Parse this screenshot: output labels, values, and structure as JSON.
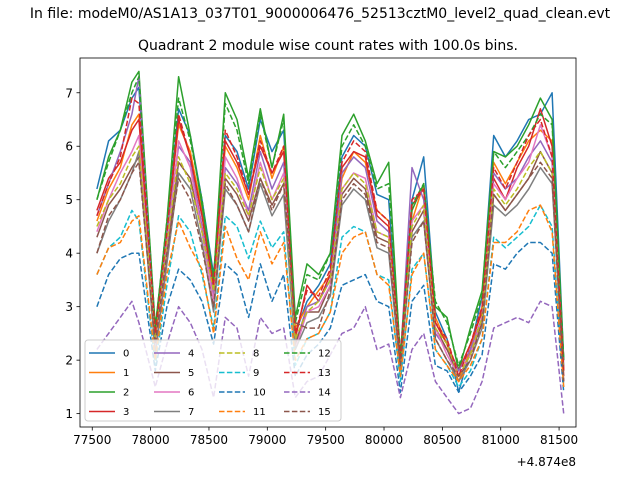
{
  "figure": {
    "suptitle": "In file: modeM0/AS1A13_037T01_9000006476_52513cztM0_level2_quad_clean.evt"
  },
  "chart_data": {
    "type": "line",
    "title": "Quadrant 2 module wise count rates with 100.0s bins.",
    "xlabel": "",
    "ylabel": "",
    "x_offset_label": "+4.874e8",
    "xlim": [
      77395,
      81645
    ],
    "ylim": [
      0.75,
      7.65
    ],
    "xticks": [
      77500,
      78000,
      78500,
      79000,
      79500,
      80000,
      80500,
      81000,
      81500
    ],
    "xtick_labels": [
      "77500",
      "78000",
      "78500",
      "79000",
      "79500",
      "80000",
      "80500",
      "81000",
      "81500"
    ],
    "yticks": [
      1,
      2,
      3,
      4,
      5,
      6,
      7
    ],
    "ytick_labels": [
      "1",
      "2",
      "3",
      "4",
      "5",
      "6",
      "7"
    ],
    "grid": false,
    "legend_position": "lower-left",
    "x": [
      77540,
      77640,
      77740,
      77840,
      77900,
      78040,
      78140,
      78240,
      78340,
      78440,
      78540,
      78640,
      78740,
      78840,
      78940,
      79040,
      79140,
      79240,
      79340,
      79440,
      79540,
      79640,
      79740,
      79840,
      79940,
      80040,
      80140,
      80240,
      80340,
      80440,
      80540,
      80640,
      80740,
      80840,
      80940,
      81040,
      81140,
      81240,
      81340,
      81440,
      81540
    ],
    "series": [
      {
        "name": "0",
        "color": "#1f77b4",
        "style": "solid",
        "values": [
          5.2,
          6.1,
          6.3,
          6.9,
          7.1,
          2.5,
          4.5,
          6.7,
          6.2,
          5.0,
          3.6,
          6.2,
          5.9,
          5.2,
          6.5,
          5.9,
          6.3,
          2.5,
          3.1,
          3.4,
          3.8,
          5.8,
          6.2,
          6.0,
          5.1,
          5.0,
          1.9,
          5.0,
          5.8,
          2.9,
          2.4,
          1.4,
          2.2,
          3.2,
          6.2,
          5.8,
          6.1,
          6.5,
          6.6,
          7.0,
          2.0
        ]
      },
      {
        "name": "1",
        "color": "#ff7f0e",
        "style": "solid",
        "values": [
          4.6,
          5.2,
          5.6,
          6.4,
          6.6,
          2.6,
          4.5,
          6.4,
          5.9,
          4.8,
          3.4,
          6.0,
          5.6,
          5.0,
          6.2,
          5.4,
          6.0,
          2.6,
          3.0,
          3.3,
          3.6,
          5.4,
          5.9,
          5.7,
          4.8,
          4.6,
          2.0,
          4.6,
          5.3,
          2.8,
          2.3,
          1.6,
          2.2,
          3.0,
          5.7,
          5.3,
          5.7,
          6.1,
          6.3,
          6.1,
          1.8
        ]
      },
      {
        "name": "2",
        "color": "#2ca02c",
        "style": "solid",
        "values": [
          5.0,
          5.8,
          6.3,
          7.2,
          7.4,
          2.6,
          4.6,
          7.3,
          6.2,
          4.9,
          3.5,
          7.0,
          6.5,
          5.4,
          6.7,
          5.6,
          6.6,
          2.8,
          3.8,
          3.6,
          4.0,
          6.2,
          6.6,
          6.1,
          5.3,
          5.7,
          2.0,
          4.8,
          5.3,
          3.0,
          2.8,
          1.8,
          2.6,
          3.3,
          5.9,
          5.8,
          6.0,
          6.4,
          6.9,
          6.5,
          2.0
        ]
      },
      {
        "name": "3",
        "color": "#d62728",
        "style": "solid",
        "values": [
          4.8,
          5.4,
          5.7,
          6.3,
          6.5,
          2.4,
          4.3,
          6.5,
          5.8,
          4.7,
          3.3,
          6.1,
          5.7,
          5.1,
          6.0,
          5.5,
          5.9,
          2.4,
          3.4,
          3.1,
          3.6,
          5.6,
          5.9,
          5.8,
          4.7,
          4.5,
          2.1,
          4.9,
          5.2,
          2.7,
          2.3,
          1.8,
          2.3,
          2.9,
          5.4,
          5.0,
          5.6,
          6.0,
          6.7,
          6.0,
          1.7
        ]
      },
      {
        "name": "4",
        "color": "#9467bd",
        "style": "solid",
        "values": [
          4.7,
          5.3,
          5.9,
          6.6,
          7.3,
          2.3,
          4.4,
          6.0,
          5.7,
          4.5,
          3.2,
          5.6,
          5.3,
          4.8,
          5.9,
          5.2,
          5.7,
          2.3,
          3.0,
          3.1,
          3.5,
          5.5,
          5.8,
          5.6,
          4.6,
          4.4,
          2.0,
          5.6,
          5.0,
          2.5,
          2.2,
          1.8,
          2.2,
          2.8,
          5.5,
          5.2,
          5.4,
          5.8,
          6.1,
          5.7,
          1.9
        ]
      },
      {
        "name": "5",
        "color": "#8c564b",
        "style": "solid",
        "values": [
          4.3,
          4.9,
          5.2,
          5.6,
          5.8,
          2.3,
          4.0,
          5.7,
          5.4,
          4.4,
          3.1,
          5.4,
          5.1,
          4.6,
          5.4,
          4.9,
          5.3,
          2.3,
          2.9,
          2.9,
          3.4,
          5.1,
          5.4,
          5.2,
          4.3,
          4.2,
          1.9,
          4.4,
          4.8,
          2.6,
          2.2,
          1.7,
          2.1,
          2.7,
          5.1,
          4.8,
          5.1,
          5.4,
          5.9,
          5.5,
          1.8
        ]
      },
      {
        "name": "6",
        "color": "#e377c2",
        "style": "solid",
        "values": [
          4.4,
          5.0,
          5.5,
          5.9,
          6.2,
          2.2,
          4.1,
          6.1,
          5.6,
          4.4,
          3.1,
          5.8,
          5.4,
          4.7,
          5.7,
          5.0,
          5.5,
          2.2,
          2.9,
          3.0,
          3.4,
          5.2,
          5.5,
          5.4,
          4.4,
          4.3,
          1.9,
          4.6,
          4.9,
          2.6,
          2.1,
          1.7,
          2.1,
          2.8,
          5.3,
          5.0,
          5.4,
          5.7,
          6.4,
          5.8,
          1.8
        ]
      },
      {
        "name": "7",
        "color": "#7f7f7f",
        "style": "solid",
        "values": [
          4.0,
          4.6,
          5.0,
          5.5,
          5.9,
          2.1,
          3.8,
          5.5,
          5.2,
          4.2,
          2.9,
          5.2,
          4.9,
          4.4,
          5.3,
          4.7,
          5.1,
          2.2,
          2.7,
          2.8,
          3.2,
          4.9,
          5.2,
          5.0,
          4.1,
          4.0,
          1.8,
          4.3,
          4.6,
          2.4,
          2.0,
          1.6,
          2.0,
          2.6,
          4.9,
          4.7,
          4.9,
          5.2,
          5.6,
          5.3,
          1.6
        ]
      },
      {
        "name": "8",
        "color": "#bcbd22",
        "style": "dashed",
        "values": [
          4.5,
          5.0,
          5.3,
          5.8,
          6.0,
          2.4,
          4.2,
          5.8,
          5.3,
          4.4,
          3.3,
          5.5,
          5.2,
          4.7,
          5.6,
          5.0,
          5.4,
          2.4,
          2.9,
          3.1,
          3.5,
          5.2,
          5.5,
          5.3,
          4.4,
          4.3,
          2.0,
          4.5,
          4.9,
          2.6,
          2.3,
          1.7,
          2.1,
          2.8,
          5.2,
          4.9,
          5.2,
          5.6,
          5.9,
          5.5,
          1.8
        ]
      },
      {
        "name": "9",
        "color": "#17becf",
        "style": "dashed",
        "values": [
          3.6,
          4.1,
          4.3,
          4.8,
          4.6,
          1.9,
          3.4,
          4.7,
          4.4,
          3.6,
          2.6,
          4.7,
          4.5,
          3.9,
          4.6,
          4.1,
          4.4,
          1.9,
          2.4,
          2.5,
          2.9,
          4.3,
          4.5,
          4.4,
          3.6,
          3.5,
          1.6,
          3.7,
          4.0,
          2.2,
          1.9,
          1.5,
          1.8,
          2.4,
          4.3,
          4.1,
          4.3,
          4.5,
          4.9,
          4.5,
          1.5
        ]
      },
      {
        "name": "10",
        "color": "#1f77b4",
        "style": "dashed",
        "values": [
          3.0,
          3.6,
          3.9,
          4.0,
          4.0,
          1.8,
          3.0,
          3.7,
          3.5,
          3.1,
          2.3,
          3.8,
          3.6,
          2.8,
          3.8,
          3.1,
          3.6,
          1.7,
          2.1,
          2.3,
          2.6,
          3.4,
          3.5,
          3.6,
          3.1,
          3.0,
          1.4,
          3.1,
          3.4,
          1.9,
          1.8,
          1.4,
          1.7,
          2.1,
          3.8,
          3.7,
          4.0,
          4.2,
          4.2,
          4.0,
          1.4
        ]
      },
      {
        "name": "11",
        "color": "#ff7f0e",
        "style": "dashed",
        "values": [
          3.6,
          4.1,
          4.2,
          4.6,
          4.7,
          2.0,
          3.6,
          4.6,
          4.1,
          3.7,
          2.5,
          4.5,
          3.9,
          3.5,
          4.4,
          3.8,
          4.2,
          2.0,
          2.4,
          2.5,
          2.9,
          4.0,
          4.3,
          4.4,
          3.6,
          3.4,
          1.7,
          3.6,
          4.0,
          2.2,
          1.9,
          1.6,
          1.9,
          2.4,
          4.2,
          4.2,
          4.4,
          4.8,
          4.9,
          4.4,
          1.5
        ]
      },
      {
        "name": "12",
        "color": "#2ca02c",
        "style": "dashed",
        "values": [
          5.0,
          5.7,
          6.3,
          7.0,
          7.3,
          2.6,
          4.6,
          6.9,
          6.1,
          5.0,
          3.5,
          6.8,
          6.3,
          5.3,
          6.6,
          5.6,
          6.5,
          2.7,
          3.6,
          3.5,
          4.0,
          6.0,
          6.4,
          6.0,
          5.2,
          5.3,
          2.1,
          4.9,
          5.3,
          3.1,
          2.7,
          1.9,
          2.5,
          3.2,
          5.9,
          5.6,
          5.9,
          6.2,
          6.6,
          6.4,
          2.0
        ]
      },
      {
        "name": "13",
        "color": "#d62728",
        "style": "dashed",
        "values": [
          4.7,
          5.3,
          5.8,
          6.9,
          6.8,
          2.5,
          4.4,
          6.6,
          5.8,
          4.7,
          3.4,
          6.3,
          5.8,
          5.1,
          6.1,
          5.5,
          6.0,
          2.5,
          3.3,
          3.2,
          3.7,
          5.7,
          6.1,
          5.9,
          4.8,
          4.6,
          2.0,
          5.0,
          5.2,
          2.7,
          2.4,
          1.7,
          2.3,
          3.0,
          5.6,
          5.2,
          5.7,
          6.2,
          6.5,
          5.8,
          1.8
        ]
      },
      {
        "name": "14",
        "color": "#9467bd",
        "style": "dashed",
        "values": [
          2.2,
          2.5,
          2.8,
          3.1,
          2.7,
          1.5,
          2.3,
          3.0,
          2.7,
          2.2,
          1.3,
          2.8,
          2.6,
          1.7,
          2.8,
          2.5,
          2.6,
          1.3,
          1.6,
          1.7,
          2.1,
          2.5,
          2.6,
          3.0,
          2.2,
          2.3,
          1.3,
          2.2,
          2.5,
          1.6,
          1.3,
          1.0,
          1.1,
          1.6,
          2.6,
          2.7,
          2.8,
          2.7,
          3.1,
          3.0,
          1.0
        ]
      },
      {
        "name": "15",
        "color": "#8c564b",
        "style": "dashed",
        "values": [
          4.0,
          4.7,
          5.0,
          5.5,
          5.7,
          2.3,
          4.0,
          5.4,
          5.0,
          4.1,
          3.0,
          5.3,
          4.9,
          4.4,
          5.4,
          4.8,
          5.3,
          2.7,
          2.6,
          2.6,
          3.3,
          5.0,
          5.3,
          5.1,
          4.2,
          4.1,
          1.9,
          4.2,
          4.6,
          2.4,
          2.0,
          1.7,
          2.0,
          2.7,
          5.1,
          4.8,
          5.1,
          5.4,
          5.7,
          5.4,
          1.6
        ]
      }
    ]
  }
}
